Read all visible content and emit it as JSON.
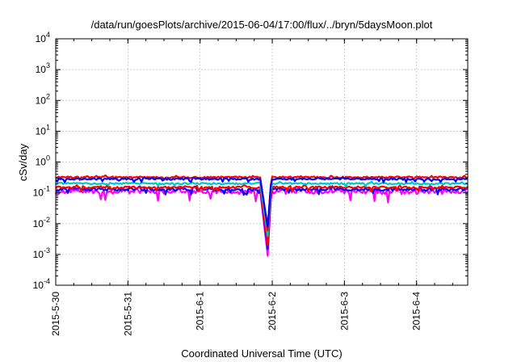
{
  "chart_data": {
    "type": "line",
    "title": "/data/run/goesPlots/archive/2015-06-04/17:00/flux/../bryn/5daysMoon.plot",
    "xlabel": "Coordinated Universal Time (UTC)",
    "ylabel": "cSv/day",
    "yscale": "log",
    "ylim": [
      0.0001,
      10000
    ],
    "y_ticks": [
      {
        "base": "10",
        "exp": "-4",
        "value": 0.0001
      },
      {
        "base": "10",
        "exp": "-3",
        "value": 0.001
      },
      {
        "base": "10",
        "exp": "-2",
        "value": 0.01
      },
      {
        "base": "10",
        "exp": "-1",
        "value": 0.1
      },
      {
        "base": "10",
        "exp": "0",
        "value": 1
      },
      {
        "base": "10",
        "exp": "1",
        "value": 10
      },
      {
        "base": "10",
        "exp": "2",
        "value": 100
      },
      {
        "base": "10",
        "exp": "3",
        "value": 1000
      },
      {
        "base": "10",
        "exp": "4",
        "value": 10000
      }
    ],
    "xlim": [
      "2015-05-30T00:00",
      "2015-06-04T17:00"
    ],
    "x_ticks": [
      {
        "label": "2015-5-30",
        "date": "2015-05-30"
      },
      {
        "label": "2015-5-31",
        "date": "2015-05-31"
      },
      {
        "label": "2015-6-1",
        "date": "2015-06-01"
      },
      {
        "label": "2015-6-2",
        "date": "2015-06-02"
      },
      {
        "label": "2015-6-3",
        "date": "2015-06-03"
      },
      {
        "label": "2015-6-4",
        "date": "2015-06-04"
      }
    ],
    "grid": true,
    "dip": {
      "start": "2015-06-01T20:00",
      "min": "2015-06-01T22:30",
      "end": "2015-06-01T23:40"
    },
    "series": [
      {
        "color": "#ff00ff",
        "base": 0.11,
        "dip_min": 0.0009,
        "noise": 0.35
      },
      {
        "color": "#0000ff",
        "base": 0.13,
        "dip_min": 0.0015,
        "noise": 0.2
      },
      {
        "color": "#ff0000",
        "base": 0.15,
        "dip_min": 0.002,
        "noise": 0.15
      },
      {
        "color": "#00c8c8",
        "base": 0.2,
        "dip_min": 0.004,
        "noise": 0.12
      },
      {
        "color": "#ff0000",
        "base": 0.32,
        "dip_min": 0.006,
        "noise": 0.12
      },
      {
        "color": "#0000ff",
        "base": 0.28,
        "dip_min": 0.008,
        "noise": 0.12
      }
    ]
  }
}
